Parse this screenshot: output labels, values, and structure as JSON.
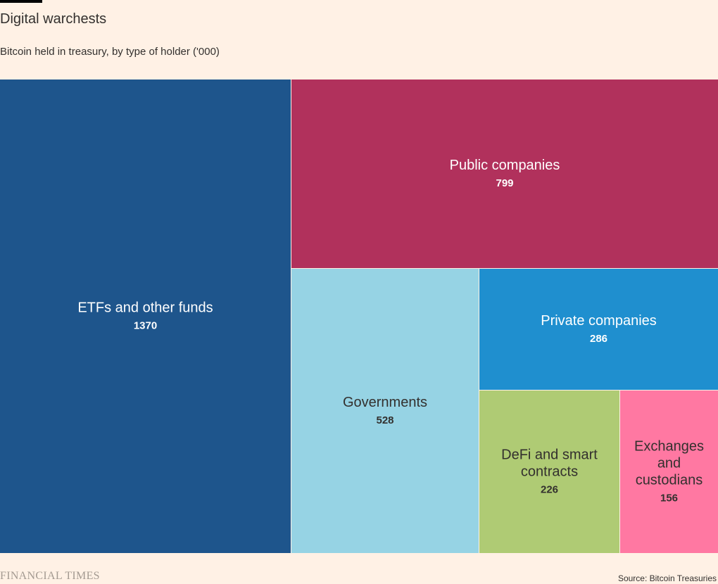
{
  "header": {
    "title": "Digital warchests",
    "subtitle": "Bitcoin held in treasury, by type of holder ('000)"
  },
  "footer": {
    "brand": "FINANCIAL TIMES",
    "source": "Source: Bitcoin Treasuries"
  },
  "chart_data": {
    "type": "treemap",
    "title": "Digital warchests",
    "subtitle": "Bitcoin held in treasury, by type of holder ('000)",
    "items": [
      {
        "name": "ETFs and other funds",
        "value": 1370,
        "color": "#1e558c",
        "text_color": "#ffffff"
      },
      {
        "name": "Public companies",
        "value": 799,
        "color": "#b1315c",
        "text_color": "#ffffff"
      },
      {
        "name": "Governments",
        "value": 528,
        "color": "#96d3e4",
        "text_color": "#33302e"
      },
      {
        "name": "Private companies",
        "value": 286,
        "color": "#1f8fcf",
        "text_color": "#ffffff"
      },
      {
        "name": "DeFi and smart contracts",
        "value": 226,
        "color": "#afcb74",
        "text_color": "#33302e"
      },
      {
        "name": "Exchanges and custodians",
        "value": 156,
        "color": "#ff78a2",
        "text_color": "#33302e"
      }
    ]
  }
}
